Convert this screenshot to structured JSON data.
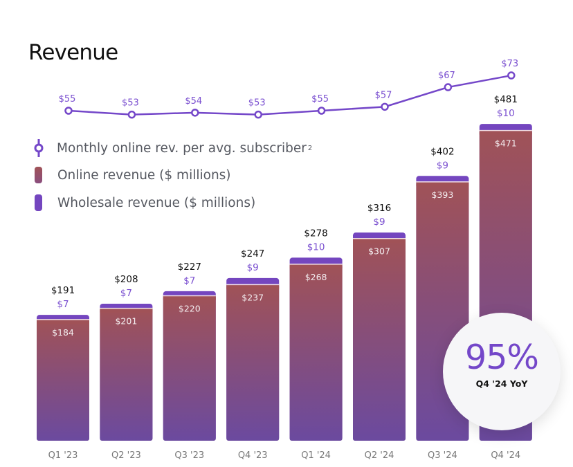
{
  "title": "Revenue",
  "colors": {
    "line": "#7447c9",
    "wholesale": "#7446bf",
    "online_top": "#a05257",
    "online_bottom": "#6e4a9e",
    "total_label": "#111111",
    "wholesale_label": "#7a4fd0",
    "online_label": "#f4eef0",
    "axis_label": "#777777"
  },
  "legend": [
    {
      "name": "line",
      "label": "Monthly online rev. per avg. subscriber",
      "superscript": "2"
    },
    {
      "name": "online",
      "label": "Online revenue ($ millions)"
    },
    {
      "name": "wholesale",
      "label": "Wholesale revenue ($ millions)"
    }
  ],
  "badge": {
    "value": "95%",
    "caption": "Q4 '24 YoY"
  },
  "chart_data": {
    "type": "bar",
    "stacked": true,
    "title": "Revenue",
    "categories": [
      "Q1 '23",
      "Q2 '23",
      "Q3 '23",
      "Q4 '23",
      "Q1 '24",
      "Q2 '24",
      "Q3 '24",
      "Q4 '24"
    ],
    "series": [
      {
        "name": "Online revenue ($ millions)",
        "values": [
          184,
          201,
          220,
          237,
          268,
          307,
          393,
          471
        ],
        "labels": [
          "$184",
          "$201",
          "$220",
          "$237",
          "$268",
          "$307",
          "$393",
          "$471"
        ]
      },
      {
        "name": "Wholesale revenue ($ millions)",
        "values": [
          7,
          7,
          7,
          9,
          10,
          9,
          9,
          10
        ],
        "labels": [
          "$7",
          "$7",
          "$7",
          "$9",
          "$10",
          "$9",
          "$9",
          "$10"
        ]
      }
    ],
    "totals": {
      "values": [
        191,
        208,
        227,
        247,
        278,
        316,
        402,
        481
      ],
      "labels": [
        "$191",
        "$208",
        "$227",
        "$247",
        "$278",
        "$316",
        "$402",
        "$481"
      ]
    },
    "line_series": {
      "type": "line",
      "name": "Monthly online rev. per avg. subscriber",
      "values": [
        55,
        53,
        54,
        53,
        55,
        57,
        67,
        73
      ],
      "labels": [
        "$55",
        "$53",
        "$54",
        "$53",
        "$55",
        "$57",
        "$67",
        "$73"
      ]
    },
    "xlabel": "",
    "ylabel": "",
    "grid": false,
    "legend_position": "left"
  }
}
